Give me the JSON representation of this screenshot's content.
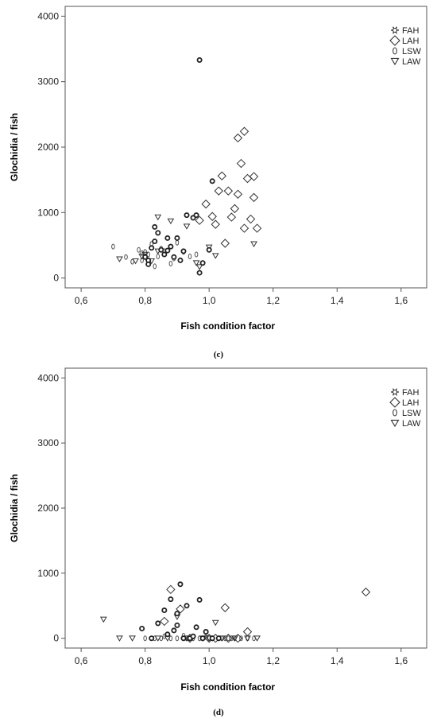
{
  "legend_entries": [
    "FAH",
    "LAH",
    "LSW",
    "LAW"
  ],
  "chart_data": [
    {
      "type": "scatter",
      "caption": "(c)",
      "xlabel": "Fish condition factor",
      "ylabel": "Glochidia / fish",
      "xlim": [
        0.55,
        1.68
      ],
      "ylim": [
        -150,
        4150
      ],
      "xticks": [
        0.6,
        0.8,
        1.0,
        1.2,
        1.4,
        1.6
      ],
      "xtick_labels": [
        "0,6",
        "0,8",
        "1,0",
        "1,2",
        "1,4",
        "1,6"
      ],
      "yticks": [
        0,
        1000,
        2000,
        3000,
        4000
      ],
      "ytick_labels": [
        "0",
        "1000",
        "2000",
        "3000",
        "4000"
      ],
      "grid": false,
      "legend_position": "top-right",
      "series": [
        {
          "name": "FAH",
          "x": [
            0.97,
            0.8,
            0.81,
            0.82,
            0.83,
            0.84,
            0.85,
            0.86,
            0.87,
            0.88,
            0.89,
            0.9,
            0.91,
            0.92,
            0.93,
            0.95,
            0.96,
            0.97,
            0.98,
            1.0,
            1.01,
            0.83,
            0.87,
            0.81
          ],
          "y": [
            3330,
            320,
            270,
            460,
            560,
            690,
            430,
            360,
            610,
            480,
            320,
            610,
            270,
            410,
            960,
            920,
            960,
            80,
            230,
            430,
            1480,
            780,
            420,
            210
          ]
        },
        {
          "name": "LAH",
          "x": [
            1.11,
            1.09,
            1.1,
            1.04,
            1.12,
            1.14,
            1.06,
            1.03,
            1.08,
            1.14,
            1.13,
            1.01,
            1.02,
            1.07,
            1.09,
            1.11,
            1.15,
            1.05,
            0.97,
            0.99
          ],
          "y": [
            2240,
            2140,
            1750,
            1560,
            1520,
            1550,
            1330,
            1330,
            1060,
            1230,
            900,
            940,
            820,
            930,
            1280,
            760,
            760,
            530,
            880,
            1130
          ]
        },
        {
          "name": "LSW",
          "x": [
            0.7,
            0.74,
            0.76,
            0.78,
            0.79,
            0.8,
            0.81,
            0.82,
            0.83,
            0.84,
            0.85,
            0.86,
            0.88,
            0.89,
            0.9,
            0.92,
            0.94,
            0.96,
            0.79
          ],
          "y": [
            480,
            320,
            250,
            430,
            270,
            400,
            360,
            520,
            180,
            330,
            450,
            410,
            220,
            300,
            540,
            400,
            330,
            360,
            380
          ]
        },
        {
          "name": "LAW",
          "x": [
            0.72,
            0.77,
            0.79,
            0.82,
            0.84,
            0.88,
            0.93,
            0.97,
            1.0,
            1.02,
            1.14,
            0.8,
            0.84,
            0.96
          ],
          "y": [
            290,
            260,
            330,
            260,
            930,
            870,
            790,
            170,
            470,
            340,
            520,
            360,
            410,
            230
          ]
        }
      ]
    },
    {
      "type": "scatter",
      "caption": "(d)",
      "xlabel": "Fish condition factor",
      "ylabel": "Glochidia / fish",
      "xlim": [
        0.55,
        1.68
      ],
      "ylim": [
        -150,
        4150
      ],
      "xticks": [
        0.6,
        0.8,
        1.0,
        1.2,
        1.4,
        1.6
      ],
      "xtick_labels": [
        "0,6",
        "0,8",
        "1,0",
        "1,2",
        "1,4",
        "1,6"
      ],
      "yticks": [
        0,
        1000,
        2000,
        3000,
        4000
      ],
      "ytick_labels": [
        "0",
        "1000",
        "2000",
        "3000",
        "4000"
      ],
      "grid": false,
      "legend_position": "top-right",
      "series": [
        {
          "name": "FAH",
          "x": [
            0.79,
            0.84,
            0.86,
            0.88,
            0.9,
            0.91,
            0.93,
            0.94,
            0.96,
            0.97,
            0.99,
            1.01,
            0.82,
            0.89,
            0.92,
            0.95,
            0.98,
            1.03,
            0.87,
            0.9
          ],
          "y": [
            150,
            230,
            430,
            600,
            380,
            830,
            500,
            0,
            170,
            590,
            100,
            0,
            0,
            120,
            0,
            30,
            0,
            0,
            60,
            200
          ]
        },
        {
          "name": "LAH",
          "x": [
            1.49,
            0.88,
            0.91,
            1.05,
            1.12,
            0.86,
            1.0,
            0.94,
            1.02,
            1.06,
            1.09
          ],
          "y": [
            710,
            750,
            450,
            470,
            100,
            260,
            0,
            0,
            0,
            0,
            0
          ]
        },
        {
          "name": "LSW",
          "x": [
            0.8,
            0.83,
            0.85,
            0.88,
            0.9,
            0.93,
            0.95,
            0.97,
            0.98,
            1.0,
            1.01,
            1.03,
            1.04,
            1.06,
            1.07,
            1.08,
            1.1,
            1.12,
            1.14,
            0.86,
            0.92,
            0.99,
            1.05
          ],
          "y": [
            0,
            0,
            0,
            0,
            0,
            0,
            0,
            0,
            0,
            0,
            0,
            0,
            0,
            0,
            0,
            0,
            0,
            0,
            0,
            30,
            40,
            20,
            0
          ]
        },
        {
          "name": "LAW",
          "x": [
            0.67,
            0.72,
            0.76,
            0.84,
            0.87,
            0.93,
            1.02,
            1.04,
            1.08,
            1.12,
            1.15,
            0.98,
            1.0,
            0.9
          ],
          "y": [
            290,
            0,
            0,
            0,
            0,
            0,
            240,
            0,
            0,
            0,
            0,
            0,
            0,
            330
          ]
        }
      ]
    }
  ]
}
